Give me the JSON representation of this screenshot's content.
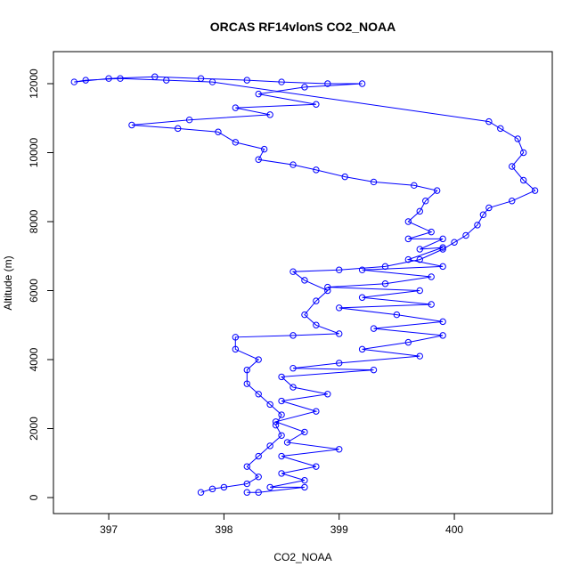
{
  "chart_data": {
    "type": "line",
    "title": "ORCAS RF14vlonS CO2_NOAA",
    "x_label": "CO2_NOAA",
    "y_label": "Altitude (m)",
    "color": "#0000ff",
    "markers": true,
    "grid": false,
    "xlim": [
      396.52,
      400.85
    ],
    "ylim": [
      -464,
      12929
    ],
    "xticks": [
      397,
      398,
      399,
      400
    ],
    "yticks": [
      0,
      2000,
      4000,
      6000,
      8000,
      10000,
      12000
    ],
    "x": [
      397.8,
      397.9,
      398.0,
      398.2,
      398.3,
      398.2,
      398.3,
      398.4,
      398.5,
      398.45,
      398.5,
      398.4,
      398.3,
      398.2,
      398.2,
      398.3,
      398.1,
      398.1,
      398.6,
      399.0,
      398.8,
      398.7,
      398.8,
      398.9,
      398.7,
      398.6,
      399.0,
      399.4,
      399.7,
      399.9,
      400.0,
      400.1,
      400.2,
      400.25,
      400.3,
      400.5,
      400.7,
      400.6,
      400.5,
      400.6,
      400.55,
      400.4,
      400.3,
      397.9,
      397.5,
      397.1,
      396.8,
      396.7,
      397.0,
      397.4,
      397.8,
      398.2,
      398.5,
      398.9,
      399.2,
      398.7,
      398.3,
      398.8,
      398.1,
      398.4,
      397.7,
      397.2,
      397.6,
      397.95,
      398.1,
      398.35,
      398.3,
      398.6,
      398.8,
      399.05,
      399.3,
      399.65,
      399.85,
      399.75,
      399.7,
      399.6,
      399.8,
      399.6,
      399.9,
      399.7,
      399.9,
      399.6,
      399.9,
      399.2,
      399.8,
      399.4,
      398.9,
      399.7,
      399.2,
      399.8,
      399.0,
      399.5,
      399.9,
      399.3,
      399.9,
      399.6,
      399.2,
      399.7,
      399.0,
      398.6,
      399.3,
      398.5,
      398.6,
      398.9,
      398.5,
      398.8,
      398.45,
      398.7,
      398.55,
      399.0,
      398.5,
      398.8,
      398.5,
      398.7,
      398.4,
      398.7,
      398.3,
      398.2
    ],
    "y": [
      150,
      250,
      300,
      400,
      600,
      900,
      1200,
      1500,
      1800,
      2100,
      2400,
      2700,
      3000,
      3300,
      3700,
      4000,
      4300,
      4650,
      4700,
      4750,
      5000,
      5300,
      5700,
      6000,
      6300,
      6550,
      6600,
      6700,
      6900,
      7200,
      7400,
      7600,
      7900,
      8200,
      8400,
      8600,
      8900,
      9200,
      9600,
      10000,
      10400,
      10700,
      10900,
      12050,
      12100,
      12150,
      12100,
      12050,
      12150,
      12200,
      12150,
      12100,
      12050,
      12000,
      12000,
      11900,
      11700,
      11400,
      11300,
      11100,
      10950,
      10800,
      10700,
      10600,
      10300,
      10100,
      9800,
      9650,
      9500,
      9300,
      9150,
      9050,
      8900,
      8600,
      8300,
      8000,
      7700,
      7500,
      7500,
      7200,
      7250,
      6900,
      6700,
      6600,
      6400,
      6200,
      6100,
      6000,
      5800,
      5600,
      5500,
      5300,
      5100,
      4900,
      4700,
      4500,
      4300,
      4100,
      3900,
      3750,
      3700,
      3500,
      3200,
      3000,
      2800,
      2500,
      2200,
      1900,
      1600,
      1400,
      1200,
      900,
      700,
      500,
      300,
      300,
      150,
      150
    ]
  }
}
